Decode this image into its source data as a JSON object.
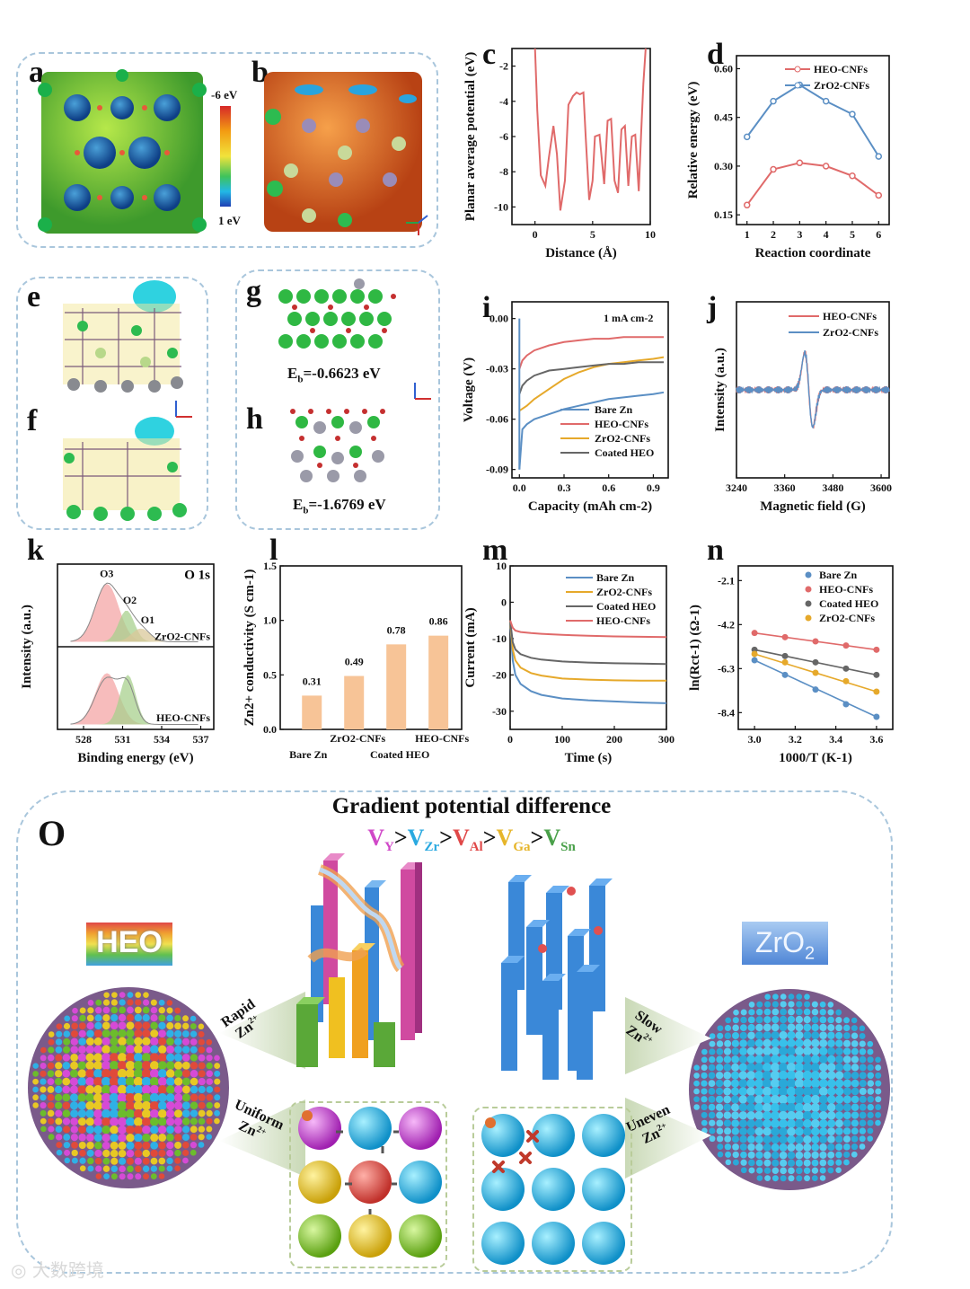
{
  "panels": {
    "a": {
      "label": "a",
      "colorbar_top": "-6 eV",
      "colorbar_bottom": "1 eV"
    },
    "b": {
      "label": "b"
    },
    "c": {
      "label": "c"
    },
    "d": {
      "label": "d"
    },
    "e": {
      "label": "e"
    },
    "f": {
      "label": "f"
    },
    "g": {
      "label": "g",
      "eb": "E",
      "eb_sub": "b",
      "eb_value": "=-0.6623 eV"
    },
    "h": {
      "label": "h",
      "eb": "E",
      "eb_sub": "b",
      "eb_value": "=-1.6769 eV"
    },
    "i": {
      "label": "i"
    },
    "j": {
      "label": "j"
    },
    "k": {
      "label": "k"
    },
    "l": {
      "label": "l"
    },
    "m": {
      "label": "m"
    },
    "n": {
      "label": "n"
    },
    "o": {
      "label": "O"
    }
  },
  "chart_data": [
    {
      "panel": "c",
      "type": "line",
      "xlabel": "Distance (Å)",
      "ylabel": "Planar average potential (eV)",
      "xlim": [
        -2,
        10
      ],
      "ylim": [
        -11,
        -1
      ],
      "xticks": [
        0,
        5,
        10
      ],
      "yticks": [
        -2,
        -4,
        -6,
        -8,
        -10
      ],
      "x": [
        0,
        0.2,
        0.5,
        0.9,
        1.2,
        1.6,
        1.9,
        2.2,
        2.6,
        2.9,
        3.3,
        3.6,
        3.9,
        4.2,
        4.4,
        4.7,
        5.0,
        5.2,
        5.6,
        6.0,
        6.3,
        6.6,
        6.9,
        7.2,
        7.5,
        7.8,
        8.1,
        8.4,
        8.7,
        9.0,
        9.2,
        9.4,
        9.6
      ],
      "y": [
        -1,
        -4.5,
        -8.2,
        -8.8,
        -7.2,
        -5.4,
        -7.0,
        -10.2,
        -8.5,
        -4.2,
        -3.7,
        -3.5,
        -3.6,
        -3.5,
        -6.0,
        -9.6,
        -8.5,
        -6.0,
        -5.9,
        -8.7,
        -5.1,
        -5.0,
        -8.5,
        -9.2,
        -5.6,
        -5.4,
        -8.8,
        -6.0,
        -5.9,
        -9.1,
        -6.0,
        -3.0,
        -1
      ]
    },
    {
      "panel": "d",
      "type": "line",
      "xlabel": "Reaction coordinate",
      "ylabel": "Relative energy (eV)",
      "xlim": [
        0.6,
        6.4
      ],
      "ylim": [
        0.12,
        0.64
      ],
      "xticks": [
        1,
        2,
        3,
        4,
        5,
        6
      ],
      "yticks": [
        0.15,
        0.3,
        0.45,
        0.6
      ],
      "categories": [
        1,
        2,
        3,
        4,
        5,
        6
      ],
      "series": [
        {
          "name": "HEO-CNFs",
          "color": "#e06a6a",
          "values": [
            0.18,
            0.29,
            0.31,
            0.3,
            0.27,
            0.21
          ]
        },
        {
          "name": "ZrO2-CNFs",
          "color": "#5b8fc4",
          "values": [
            0.39,
            0.5,
            0.55,
            0.5,
            0.46,
            0.33
          ]
        }
      ]
    },
    {
      "panel": "i",
      "type": "line",
      "title": "1 mA cm-2",
      "xlabel": "Capacity (mAh cm-2)",
      "ylabel": "Voltage (V)",
      "xlim": [
        -0.05,
        1.0
      ],
      "ylim": [
        -0.095,
        0.01
      ],
      "xticks": [
        0.0,
        0.3,
        0.6,
        0.9
      ],
      "yticks": [
        0.0,
        -0.03,
        -0.06,
        -0.09
      ],
      "series": [
        {
          "name": "Bare Zn",
          "color": "#5b8fc4",
          "x": [
            0,
            0.02,
            0.05,
            0.1,
            0.2,
            0.3,
            0.4,
            0.5,
            0.6,
            0.7,
            0.8,
            0.9,
            0.97
          ],
          "y": [
            -0.09,
            -0.066,
            -0.063,
            -0.06,
            -0.057,
            -0.054,
            -0.052,
            -0.05,
            -0.048,
            -0.047,
            -0.046,
            -0.045,
            -0.044
          ]
        },
        {
          "name": "HEO-CNFs",
          "color": "#e06a6a",
          "x": [
            0,
            0.02,
            0.05,
            0.1,
            0.2,
            0.3,
            0.4,
            0.5,
            0.6,
            0.7,
            0.8,
            0.9,
            0.97
          ],
          "y": [
            -0.03,
            -0.025,
            -0.022,
            -0.019,
            -0.016,
            -0.014,
            -0.013,
            -0.012,
            -0.012,
            -0.011,
            -0.011,
            -0.011,
            -0.011
          ]
        },
        {
          "name": "ZrO2-CNFs",
          "color": "#e6a92b",
          "x": [
            0,
            0.05,
            0.1,
            0.2,
            0.3,
            0.4,
            0.5,
            0.6,
            0.7,
            0.8,
            0.9,
            0.97
          ],
          "y": [
            -0.055,
            -0.052,
            -0.048,
            -0.042,
            -0.036,
            -0.032,
            -0.029,
            -0.027,
            -0.026,
            -0.025,
            -0.024,
            -0.023
          ]
        },
        {
          "name": "Coated HEO",
          "color": "#666666",
          "x": [
            0,
            0.02,
            0.05,
            0.1,
            0.2,
            0.3,
            0.4,
            0.5,
            0.6,
            0.7,
            0.8,
            0.9,
            0.97
          ],
          "y": [
            -0.045,
            -0.04,
            -0.037,
            -0.034,
            -0.031,
            -0.03,
            -0.029,
            -0.028,
            -0.027,
            -0.027,
            -0.026,
            -0.026,
            -0.026
          ]
        }
      ]
    },
    {
      "panel": "j",
      "type": "line",
      "xlabel": "Magnetic field (G)",
      "ylabel": "Intensity (a.u.)",
      "xlim": [
        3240,
        3620
      ],
      "xticks": [
        3240,
        3360,
        3480,
        3600
      ],
      "series": [
        {
          "name": "HEO-CNFs",
          "color": "#e06a6a"
        },
        {
          "name": "ZrO2-CNFs",
          "color": "#5b8fc4"
        }
      ]
    },
    {
      "panel": "k",
      "type": "area",
      "title": "O 1s",
      "xlabel": "Binding energy (eV)",
      "ylabel": "Intensity (a.u.)",
      "xlim": [
        526,
        538
      ],
      "xticks": [
        528,
        531,
        534,
        537
      ],
      "peaks": [
        "O3",
        "O2",
        "O1"
      ],
      "series": [
        {
          "name": "ZrO2-CNFs"
        },
        {
          "name": "HEO-CNFs"
        }
      ]
    },
    {
      "panel": "l",
      "type": "bar",
      "ylabel": "Zn2+ conductivity (S cm-1)",
      "categories": [
        "Bare Zn",
        "ZrO2-CNFs",
        "Coated HEO",
        "HEO-CNFs"
      ],
      "values": [
        0.31,
        0.49,
        0.78,
        0.86
      ],
      "value_labels": [
        "0.31",
        "0.49",
        "0.78",
        "0.86"
      ],
      "ylim": [
        0,
        1.5
      ],
      "yticks": [
        0.0,
        0.5,
        1.0,
        1.5
      ],
      "color": "#f7c497"
    },
    {
      "panel": "m",
      "type": "line",
      "xlabel": "Time (s)",
      "ylabel": "Current (mA)",
      "xlim": [
        0,
        300
      ],
      "ylim": [
        -35,
        10
      ],
      "xticks": [
        0,
        100,
        200,
        300
      ],
      "yticks": [
        10,
        0,
        -10,
        -20,
        -30
      ],
      "series": [
        {
          "name": "Bare Zn",
          "color": "#5b8fc4",
          "x": [
            0,
            5,
            10,
            20,
            40,
            60,
            100,
            150,
            200,
            250,
            300
          ],
          "y": [
            -5,
            -16,
            -20,
            -22.5,
            -24.5,
            -25.5,
            -26.5,
            -27,
            -27.3,
            -27.6,
            -27.8
          ]
        },
        {
          "name": "ZrO2-CNFs",
          "color": "#e6a92b",
          "x": [
            0,
            5,
            10,
            20,
            40,
            60,
            100,
            150,
            200,
            250,
            300
          ],
          "y": [
            -5,
            -13,
            -16,
            -18,
            -19.5,
            -20.2,
            -21,
            -21.3,
            -21.5,
            -21.6,
            -21.6
          ]
        },
        {
          "name": "Coated HEO",
          "color": "#666666",
          "x": [
            0,
            5,
            10,
            20,
            40,
            60,
            100,
            150,
            200,
            250,
            300
          ],
          "y": [
            -5,
            -11,
            -13,
            -14.3,
            -15.3,
            -15.8,
            -16.3,
            -16.6,
            -16.8,
            -16.9,
            -17
          ]
        },
        {
          "name": "HEO-CNFs",
          "color": "#e06a6a",
          "x": [
            0,
            5,
            10,
            20,
            40,
            60,
            100,
            150,
            200,
            250,
            300
          ],
          "y": [
            -5,
            -7,
            -7.8,
            -8.2,
            -8.5,
            -8.7,
            -9,
            -9.2,
            -9.4,
            -9.5,
            -9.6
          ]
        }
      ]
    },
    {
      "panel": "n",
      "type": "scatter",
      "xlabel": "1000/T (K-1)",
      "ylabel": "ln(Rct-1) (Ω-1)",
      "xlim": [
        2.92,
        3.68
      ],
      "ylim": [
        -9.2,
        -1.4
      ],
      "xticks": [
        3.0,
        3.2,
        3.4,
        3.6
      ],
      "yticks": [
        -2.1,
        -4.2,
        -6.3,
        -8.4
      ],
      "x": [
        3.0,
        3.15,
        3.3,
        3.45,
        3.6
      ],
      "series": [
        {
          "name": "Bare Zn",
          "color": "#5b8fc4",
          "values": [
            -5.9,
            -6.6,
            -7.3,
            -8.0,
            -8.6
          ]
        },
        {
          "name": "HEO-CNFs",
          "color": "#e06a6a",
          "values": [
            -4.6,
            -4.8,
            -5.0,
            -5.2,
            -5.4
          ]
        },
        {
          "name": "Coated HEO",
          "color": "#666666",
          "values": [
            -5.4,
            -5.7,
            -6.0,
            -6.3,
            -6.6
          ]
        },
        {
          "name": "ZrO2-CNFs",
          "color": "#e6a92b",
          "values": [
            -5.6,
            -6.0,
            -6.5,
            -6.9,
            -7.4
          ]
        }
      ]
    }
  ],
  "schematic": {
    "title": "Gradient potential difference",
    "series_letter": "V",
    "subs": [
      "Y",
      "Zr",
      "Al",
      "Ga",
      "Sn"
    ],
    "sep": ">",
    "sub_colors": [
      "#d048c8",
      "#2aa9e0",
      "#e04848",
      "#e6b52a",
      "#4aa04a"
    ],
    "heo_badge": "HEO",
    "zro2_badge": "ZrO",
    "zro2_sub": "2",
    "rapid": "Rapid",
    "slow": "Slow",
    "uniform": "Uniform",
    "uneven": "Uneven",
    "zn": "Zn",
    "zn_sup": "2+"
  },
  "watermark": "大数跨境"
}
